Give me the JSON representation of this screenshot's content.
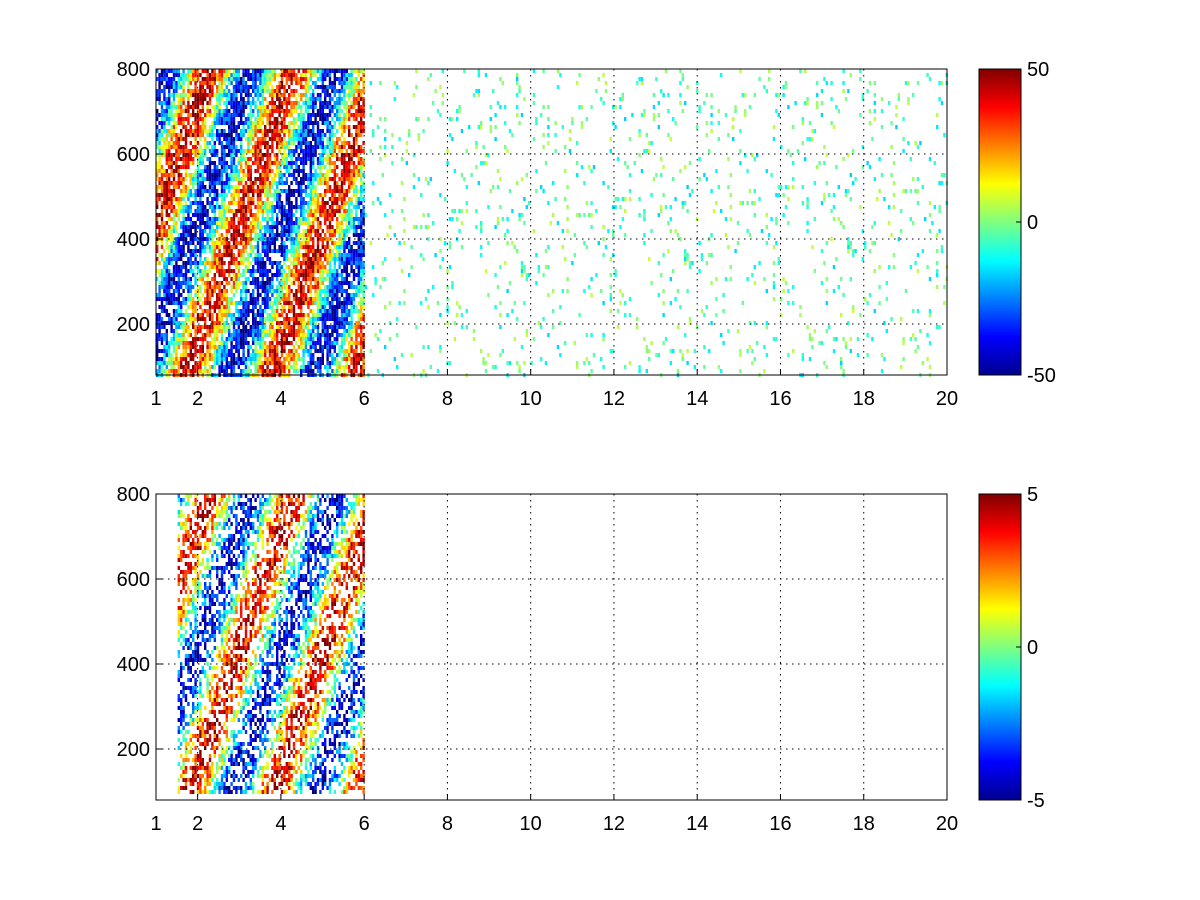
{
  "chart_data": [
    {
      "type": "heatmap",
      "title": "",
      "xlabel": "",
      "ylabel": "",
      "xlim": [
        1,
        20
      ],
      "ylim": [
        80,
        800
      ],
      "x_ticks": [
        1,
        2,
        4,
        6,
        8,
        10,
        12,
        14,
        16,
        18,
        20
      ],
      "x_tick_labels": [
        "1",
        "2",
        "4",
        "6",
        "8",
        "10",
        "12",
        "14",
        "16",
        "18",
        "20"
      ],
      "y_ticks": [
        200,
        400,
        600,
        800
      ],
      "y_tick_labels": [
        "200",
        "400",
        "600",
        "800"
      ],
      "grid": true,
      "colormap": "jet",
      "colorbar": {
        "min": -50,
        "max": 50,
        "ticks": [
          -50,
          0,
          50
        ],
        "tick_labels": [
          "-50",
          "0",
          "50"
        ],
        "placement": "right"
      },
      "features": [
        {
          "description": "dense field",
          "x_range": [
            1,
            6
          ],
          "y_range": [
            80,
            800
          ]
        },
        {
          "description": "sparse speckle",
          "x_range": [
            6,
            20
          ],
          "y_range": [
            80,
            800
          ]
        }
      ]
    },
    {
      "type": "heatmap",
      "title": "",
      "xlabel": "",
      "ylabel": "",
      "xlim": [
        1,
        20
      ],
      "ylim": [
        80,
        800
      ],
      "x_ticks": [
        1,
        2,
        4,
        6,
        8,
        10,
        12,
        14,
        16,
        18,
        20
      ],
      "x_tick_labels": [
        "1",
        "2",
        "4",
        "6",
        "8",
        "10",
        "12",
        "14",
        "16",
        "18",
        "20"
      ],
      "y_ticks": [
        200,
        400,
        600,
        800
      ],
      "y_tick_labels": [
        "200",
        "400",
        "600",
        "800"
      ],
      "grid": true,
      "colormap": "jet",
      "colorbar": {
        "min": -5,
        "max": 5,
        "ticks": [
          -5,
          0,
          5
        ],
        "tick_labels": [
          "-5",
          "0",
          "5"
        ],
        "placement": "right"
      },
      "features": [
        {
          "description": "dense field",
          "x_range": [
            1.5,
            6
          ],
          "y_range": [
            100,
            800
          ]
        }
      ]
    }
  ]
}
